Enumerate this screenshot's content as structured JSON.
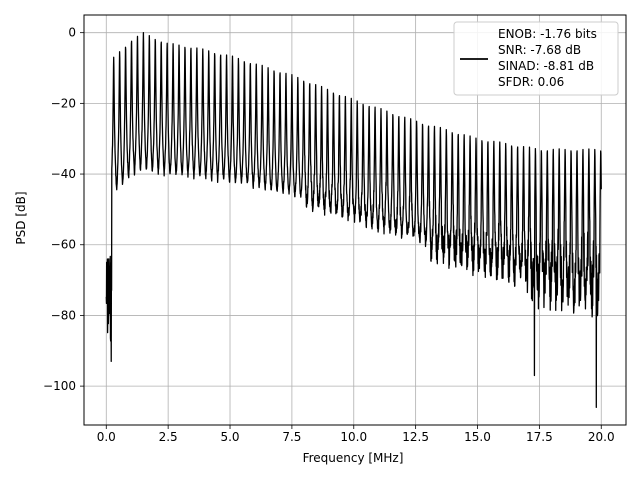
{
  "chart_data": {
    "type": "line",
    "title": "",
    "xlabel": "Frequency [MHz]",
    "ylabel": "PSD [dB]",
    "xlim": [
      -0.9,
      21.0
    ],
    "ylim": [
      -111,
      5
    ],
    "grid": true,
    "legend_position": "top-right",
    "x_ticks": [
      0.0,
      2.5,
      5.0,
      7.5,
      10.0,
      12.5,
      15.0,
      17.5,
      20.0
    ],
    "x_tick_labels": [
      "0.0",
      "2.5",
      "5.0",
      "7.5",
      "10.0",
      "12.5",
      "15.0",
      "17.5",
      "20.0"
    ],
    "y_ticks": [
      0,
      -20,
      -40,
      -60,
      -80,
      -100
    ],
    "y_tick_labels": [
      "0",
      "−20",
      "−40",
      "−60",
      "−80",
      "−100"
    ],
    "legend_lines": [
      "ENOB: -1.76 bits",
      "SNR: -7.68 dB",
      "SINAD: -8.81 dB",
      "SFDR: 0.06"
    ],
    "series": [
      {
        "color": "#000000",
        "harmonic_spacing_mhz": 0.24,
        "first_harmonic_mhz": 0.3,
        "harmonic_peaks": [
          {
            "x": 0.3,
            "y": -7
          },
          {
            "x": 1.0,
            "y": -2
          },
          {
            "x": 1.5,
            "y": 0
          },
          {
            "x": 2.5,
            "y": -3
          },
          {
            "x": 3.5,
            "y": -4
          },
          {
            "x": 5.0,
            "y": -6.5
          },
          {
            "x": 7.5,
            "y": -12
          },
          {
            "x": 10.0,
            "y": -19
          },
          {
            "x": 12.5,
            "y": -25
          },
          {
            "x": 15.0,
            "y": -30
          },
          {
            "x": 17.5,
            "y": -33
          },
          {
            "x": 19.9,
            "y": -33
          }
        ],
        "noise_floor_between_harmonics": [
          {
            "x": 0.1,
            "y": -50
          },
          {
            "x": 0.5,
            "y": -58
          },
          {
            "x": 1.0,
            "y": -52
          },
          {
            "x": 2.5,
            "y": -49
          },
          {
            "x": 5.0,
            "y": -48
          },
          {
            "x": 7.5,
            "y": -50
          },
          {
            "x": 10.0,
            "y": -55
          },
          {
            "x": 12.5,
            "y": -60
          },
          {
            "x": 15.0,
            "y": -64
          },
          {
            "x": 17.5,
            "y": -70
          },
          {
            "x": 20.0,
            "y": -75
          }
        ],
        "deep_notches": [
          {
            "x": 0.2,
            "y": -93
          },
          {
            "x": 17.3,
            "y": -97
          },
          {
            "x": 19.8,
            "y": -106
          }
        ]
      }
    ]
  }
}
